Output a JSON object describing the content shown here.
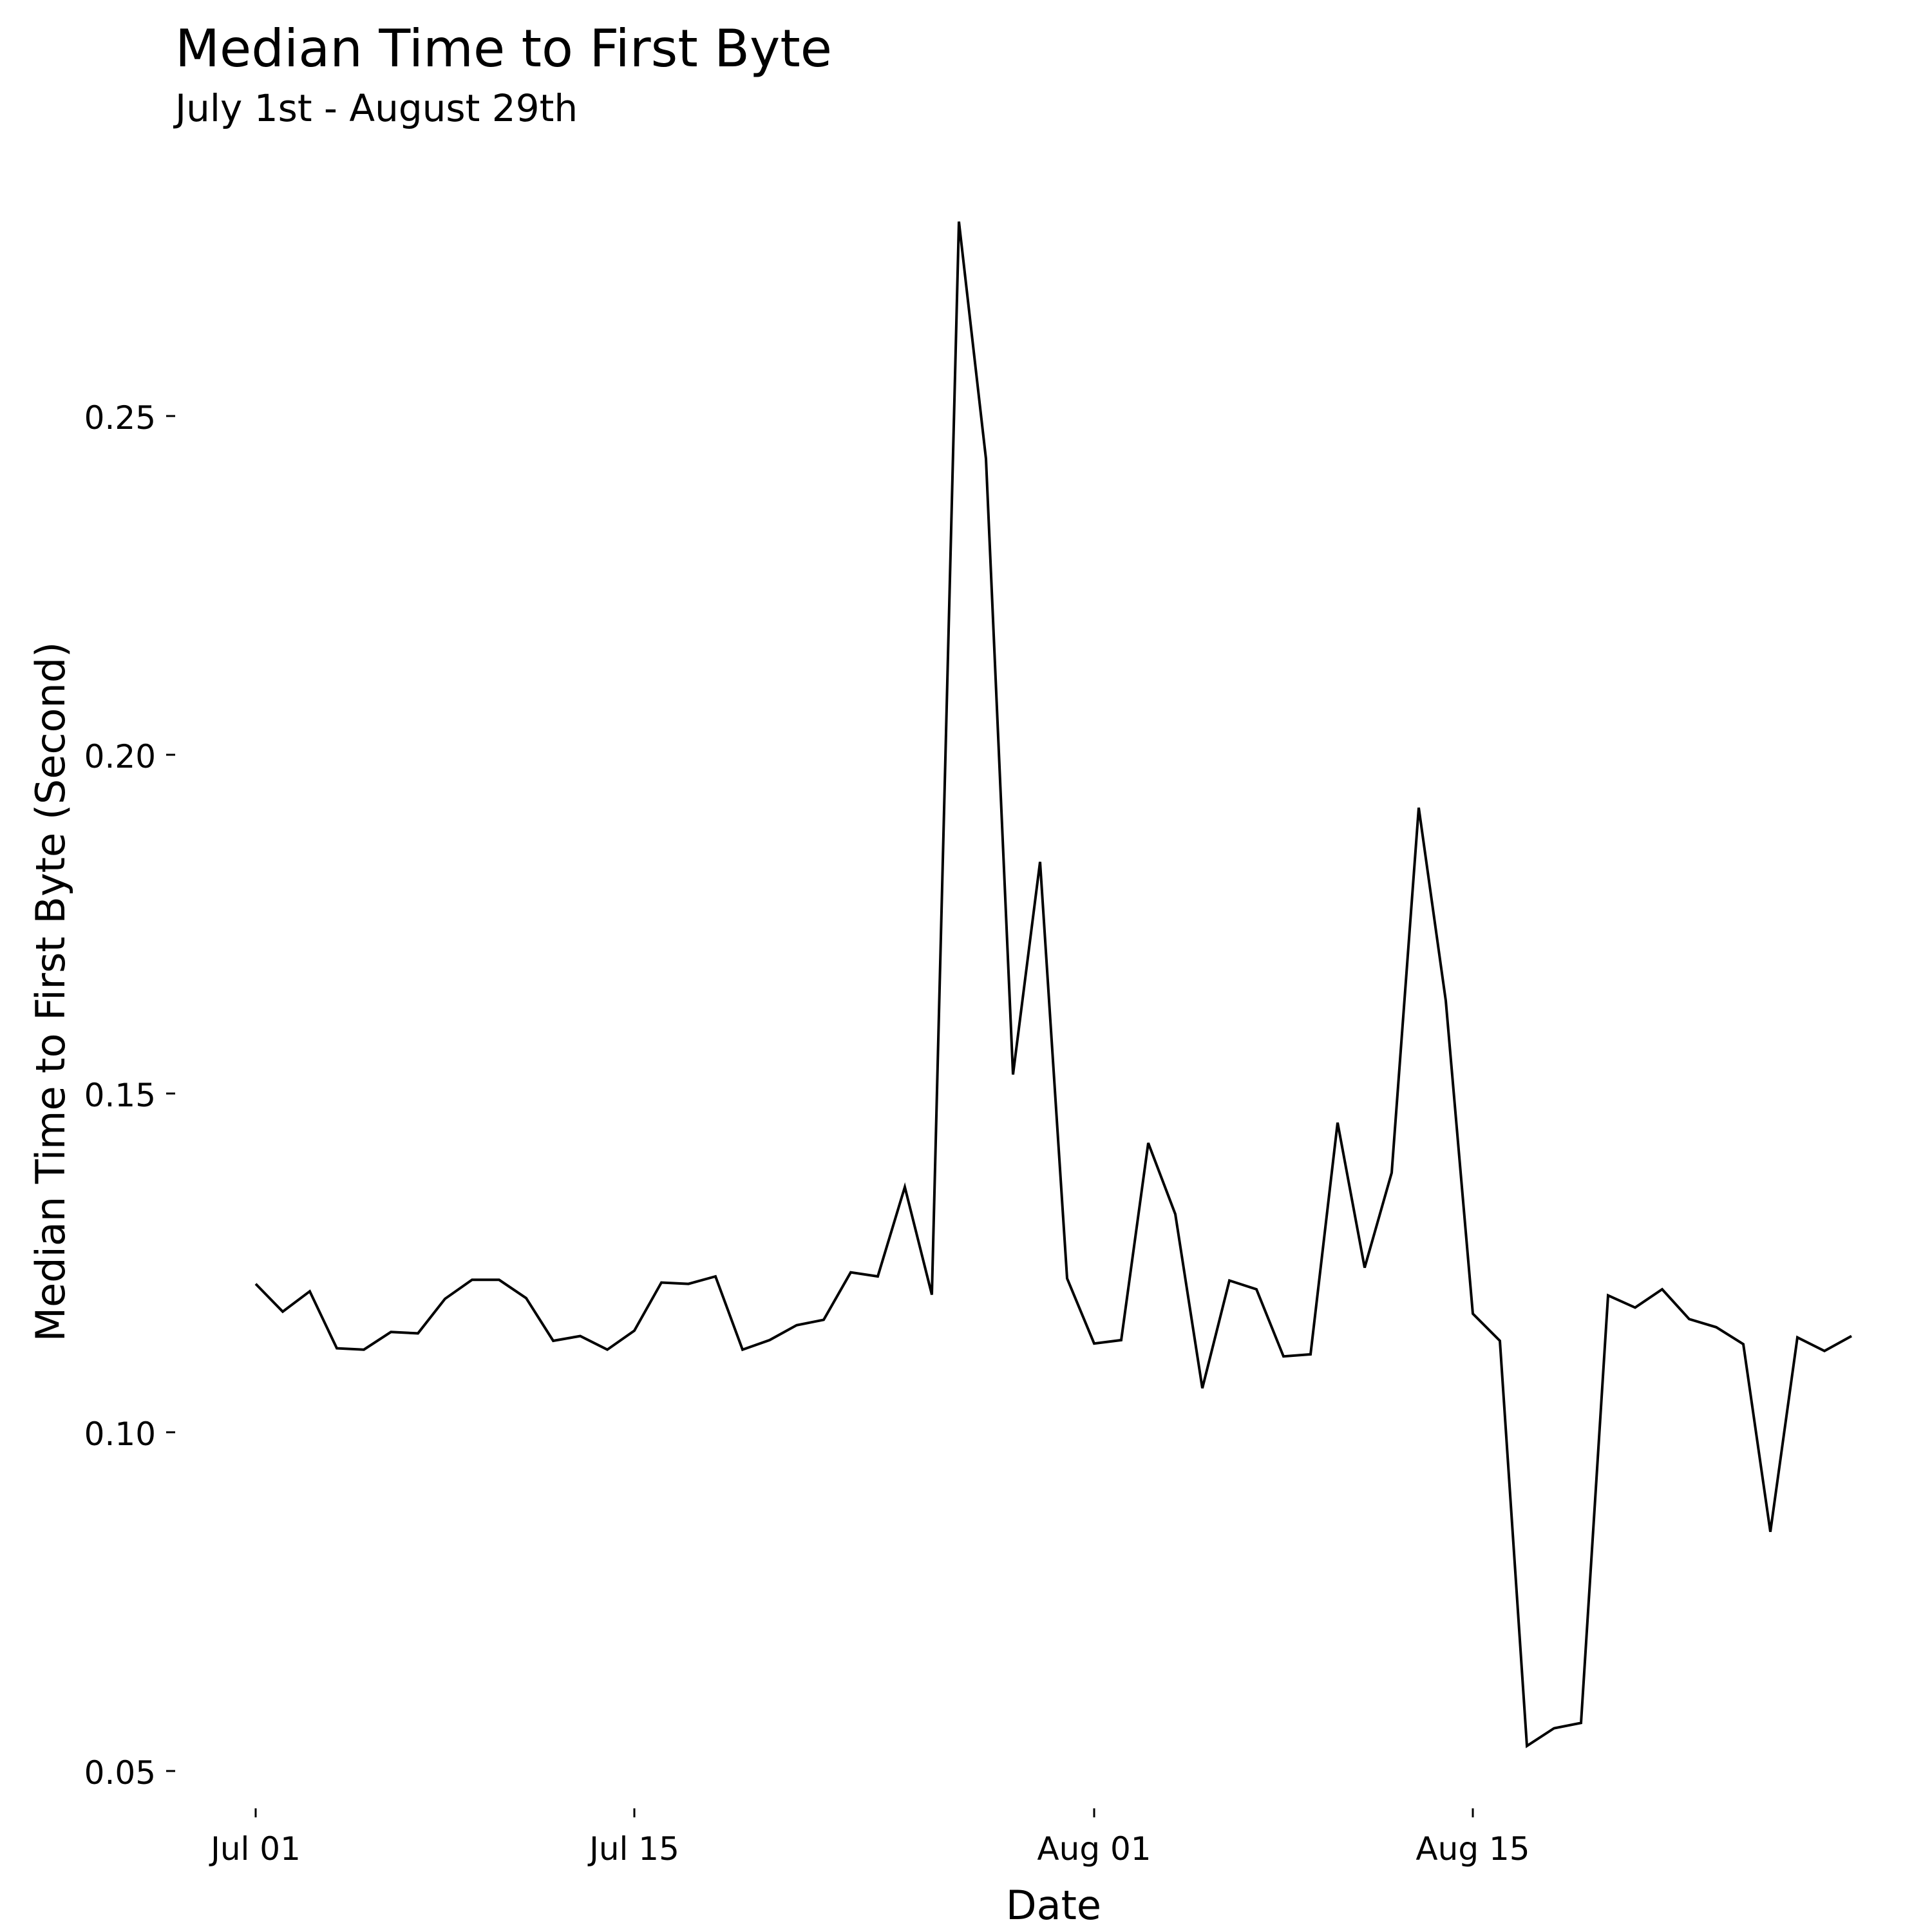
{
  "chart_data": {
    "type": "line",
    "title": "Median Time to First Byte",
    "subtitle": "July 1st - August 29th",
    "xlabel": "Date",
    "ylabel": "Median Time to First Byte (Second)",
    "x_ticks": [
      {
        "label": "Jul 01",
        "date": "2015-07-01"
      },
      {
        "label": "Jul 15",
        "date": "2015-07-15"
      },
      {
        "label": "Aug 01",
        "date": "2015-08-01"
      },
      {
        "label": "Aug 15",
        "date": "2015-08-15"
      }
    ],
    "y_ticks": [
      0.05,
      0.1,
      0.15,
      0.2,
      0.25
    ],
    "y_tick_labels": [
      "0.05",
      "0.10",
      "0.15",
      "0.20",
      "0.25"
    ],
    "xlim": [
      "2015-07-01",
      "2015-08-29"
    ],
    "ylim": [
      0.045,
      0.28
    ],
    "grid": false,
    "line_color": "#000000",
    "series": [
      {
        "x": [
          "2015-07-01",
          "2015-07-02",
          "2015-07-03",
          "2015-07-04",
          "2015-07-05",
          "2015-07-06",
          "2015-07-07",
          "2015-07-08",
          "2015-07-09",
          "2015-07-10",
          "2015-07-11",
          "2015-07-12",
          "2015-07-13",
          "2015-07-14",
          "2015-07-15",
          "2015-07-16",
          "2015-07-17",
          "2015-07-18",
          "2015-07-19",
          "2015-07-20",
          "2015-07-21",
          "2015-07-22",
          "2015-07-23",
          "2015-07-24",
          "2015-07-25",
          "2015-07-26",
          "2015-07-27",
          "2015-07-28",
          "2015-07-29",
          "2015-07-30",
          "2015-07-31",
          "2015-08-01",
          "2015-08-02",
          "2015-08-03",
          "2015-08-04",
          "2015-08-05",
          "2015-08-06",
          "2015-08-07",
          "2015-08-08",
          "2015-08-09",
          "2015-08-10",
          "2015-08-11",
          "2015-08-12",
          "2015-08-13",
          "2015-08-14",
          "2015-08-15",
          "2015-08-16",
          "2015-08-17",
          "2015-08-18",
          "2015-08-19",
          "2015-08-20",
          "2015-08-21",
          "2015-08-22",
          "2015-08-23",
          "2015-08-24",
          "2015-08-25",
          "2015-08-26",
          "2015-08-27",
          "2015-08-28",
          "2015-08-29"
        ],
        "values": [
          0.1219,
          0.1178,
          0.1208,
          0.1124,
          0.1122,
          0.1148,
          0.1146,
          0.1197,
          0.1225,
          0.1225,
          0.1198,
          0.1135,
          0.1142,
          0.1122,
          0.115,
          0.1221,
          0.1219,
          0.123,
          0.1122,
          0.1136,
          0.1158,
          0.1166,
          0.1236,
          0.123,
          0.1362,
          0.1203,
          0.2787,
          0.2437,
          0.1528,
          0.1842,
          0.1227,
          0.1131,
          0.1136,
          0.1427,
          0.1322,
          0.1065,
          0.1224,
          0.1211,
          0.1112,
          0.1115,
          0.1457,
          0.1243,
          0.1383,
          0.1922,
          0.1637,
          0.1175,
          0.1135,
          0.0537,
          0.0563,
          0.0571,
          0.1202,
          0.1184,
          0.1211,
          0.1167,
          0.1155,
          0.113,
          0.0853,
          0.114,
          0.112,
          0.1142
        ]
      }
    ]
  }
}
